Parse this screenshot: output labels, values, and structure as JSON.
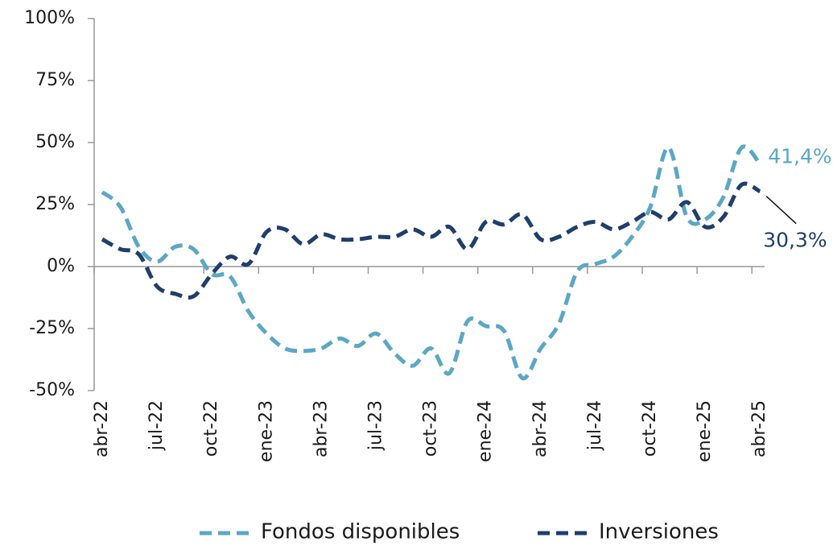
{
  "chart_data": {
    "type": "line",
    "categories": [
      "abr-22",
      null,
      null,
      "jul-22",
      null,
      null,
      "oct-22",
      null,
      null,
      "ene-23",
      null,
      null,
      "abr-23",
      null,
      null,
      "jul-23",
      null,
      null,
      "oct-23",
      null,
      null,
      "ene-24",
      null,
      null,
      "abr-24",
      null,
      null,
      "jul-24",
      null,
      null,
      "oct-24",
      null,
      null,
      "ene-25",
      null,
      null,
      "abr-25"
    ],
    "series": [
      {
        "name": "Fondos disponibles",
        "color": "#5ba7c6",
        "values": [
          30,
          24,
          8,
          2,
          8,
          7,
          -3,
          -4,
          -18,
          -27,
          -33,
          -34,
          -33,
          -29,
          -32,
          -27,
          -35,
          -40,
          -33,
          -43,
          -22,
          -24,
          -26,
          -45,
          -33,
          -23,
          -2,
          1,
          4,
          12,
          24,
          48,
          20,
          19,
          28,
          48,
          41.4
        ],
        "value_labels": [
          null,
          null,
          null,
          null,
          null,
          null,
          null,
          null,
          null,
          null,
          null,
          null,
          null,
          null,
          null,
          null,
          null,
          null,
          null,
          null,
          null,
          null,
          null,
          null,
          null,
          null,
          null,
          null,
          null,
          null,
          null,
          null,
          null,
          null,
          null,
          null,
          "41,4%"
        ]
      },
      {
        "name": "Inversiones",
        "color": "#1f3e6c",
        "values": [
          11,
          7,
          5,
          -8,
          -11,
          -12,
          -3,
          4,
          1,
          14,
          15,
          9,
          13,
          11,
          11,
          12,
          12,
          15,
          12,
          16,
          7,
          18,
          17,
          21,
          11,
          12,
          16,
          18,
          15,
          18,
          22,
          19,
          26,
          16,
          20,
          33,
          30.3
        ],
        "value_labels": [
          null,
          null,
          null,
          null,
          null,
          null,
          null,
          null,
          null,
          null,
          null,
          null,
          null,
          null,
          null,
          null,
          null,
          null,
          null,
          null,
          null,
          null,
          null,
          null,
          null,
          null,
          null,
          null,
          null,
          null,
          null,
          null,
          null,
          null,
          null,
          null,
          "30,3%"
        ]
      }
    ],
    "ylim": [
      -50,
      100
    ],
    "yticks": [
      {
        "value": -50,
        "label": "-50%"
      },
      {
        "value": -25,
        "label": "-25%"
      },
      {
        "value": 0,
        "label": "0%"
      },
      {
        "value": 25,
        "label": "25%"
      },
      {
        "value": 50,
        "label": "50%"
      },
      {
        "value": 75,
        "label": "75%"
      },
      {
        "value": 100,
        "label": "100%"
      }
    ],
    "grid": false,
    "legend": "bottom"
  }
}
